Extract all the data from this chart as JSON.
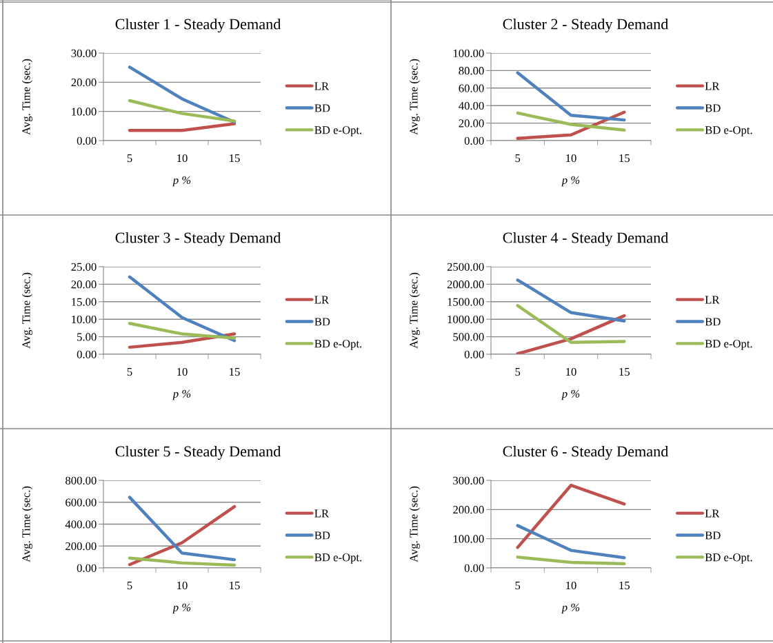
{
  "chart_data": [
    {
      "type": "line",
      "title": "Cluster 1 - Steady Demand",
      "xlabel": "p %",
      "ylabel": "Avg. Time (sec.)",
      "categories": [
        "5",
        "10",
        "15"
      ],
      "ylim": [
        0,
        30
      ],
      "yticks": [
        {
          "value": 0,
          "label": "0.00"
        },
        {
          "value": 10,
          "label": "10.00"
        },
        {
          "value": 20,
          "label": "20.00"
        },
        {
          "value": 30,
          "label": "30.00"
        }
      ],
      "grid": "y",
      "legend": "right",
      "marker": "none",
      "series": [
        {
          "name": "LR",
          "color": "#c0504d",
          "values": [
            3.5,
            3.5,
            5.8
          ]
        },
        {
          "name": "BD",
          "color": "#4f81bd",
          "values": [
            25.2,
            14.3,
            6.3
          ]
        },
        {
          "name": "BD e-Opt.",
          "color": "#9bbb59",
          "values": [
            13.7,
            9.3,
            6.7
          ]
        }
      ]
    },
    {
      "type": "line",
      "title": "Cluster 2 - Steady Demand",
      "xlabel": "p %",
      "ylabel": "Avg. Time (sec.)",
      "categories": [
        "5",
        "10",
        "15"
      ],
      "ylim": [
        0,
        100
      ],
      "yticks": [
        {
          "value": 0,
          "label": "0.00"
        },
        {
          "value": 20,
          "label": "20.00"
        },
        {
          "value": 40,
          "label": "40.00"
        },
        {
          "value": 60,
          "label": "60.00"
        },
        {
          "value": 80,
          "label": "80.00"
        },
        {
          "value": 100,
          "label": "100.00"
        }
      ],
      "grid": "y",
      "legend": "right",
      "marker": "none",
      "series": [
        {
          "name": "LR",
          "color": "#c0504d",
          "values": [
            2.5,
            6.5,
            32.5
          ]
        },
        {
          "name": "BD",
          "color": "#4f81bd",
          "values": [
            77.5,
            29,
            23.5
          ]
        },
        {
          "name": "BD e-Opt.",
          "color": "#9bbb59",
          "values": [
            31.5,
            18.5,
            12
          ]
        }
      ]
    },
    {
      "type": "line",
      "title": "Cluster 3 - Steady Demand",
      "xlabel": "p %",
      "ylabel": "Avg. Time (sec.)",
      "categories": [
        "5",
        "10",
        "15"
      ],
      "ylim": [
        0,
        25
      ],
      "yticks": [
        {
          "value": 0,
          "label": "0.00"
        },
        {
          "value": 5,
          "label": "5.00"
        },
        {
          "value": 10,
          "label": "10.00"
        },
        {
          "value": 15,
          "label": "15.00"
        },
        {
          "value": 20,
          "label": "20.00"
        },
        {
          "value": 25,
          "label": "25.00"
        }
      ],
      "grid": "y",
      "legend": "right",
      "marker": "none",
      "series": [
        {
          "name": "LR",
          "color": "#c0504d",
          "values": [
            2,
            3.4,
            5.8
          ]
        },
        {
          "name": "BD",
          "color": "#4f81bd",
          "values": [
            22.1,
            10.5,
            3.9
          ]
        },
        {
          "name": "BD e-Opt.",
          "color": "#9bbb59",
          "values": [
            8.8,
            5.8,
            4.6
          ]
        }
      ]
    },
    {
      "type": "line",
      "title": "Cluster 4 - Steady Demand",
      "xlabel": "p %",
      "ylabel": "Avg. Time (sec.)",
      "categories": [
        "5",
        "10",
        "15"
      ],
      "ylim": [
        0,
        2500
      ],
      "yticks": [
        {
          "value": 0,
          "label": "0.00"
        },
        {
          "value": 500,
          "label": "500.00"
        },
        {
          "value": 1000,
          "label": "1000.00"
        },
        {
          "value": 1500,
          "label": "1500.00"
        },
        {
          "value": 2000,
          "label": "2000.00"
        },
        {
          "value": 2500,
          "label": "2500.00"
        }
      ],
      "grid": "y",
      "legend": "right",
      "marker": "none",
      "series": [
        {
          "name": "LR",
          "color": "#c0504d",
          "values": [
            15,
            440,
            1100
          ]
        },
        {
          "name": "BD",
          "color": "#4f81bd",
          "values": [
            2120,
            1190,
            950
          ]
        },
        {
          "name": "BD e-Opt.",
          "color": "#9bbb59",
          "values": [
            1390,
            340,
            365
          ]
        }
      ]
    },
    {
      "type": "line",
      "title": "Cluster 5 - Steady Demand",
      "xlabel": "p %",
      "ylabel": "Avg. Time (sec.)",
      "categories": [
        "5",
        "10",
        "15"
      ],
      "ylim": [
        0,
        800
      ],
      "yticks": [
        {
          "value": 0,
          "label": "0.00"
        },
        {
          "value": 200,
          "label": "200.00"
        },
        {
          "value": 400,
          "label": "400.00"
        },
        {
          "value": 600,
          "label": "600.00"
        },
        {
          "value": 800,
          "label": "800.00"
        }
      ],
      "grid": "y",
      "legend": "right",
      "marker": "none",
      "series": [
        {
          "name": "LR",
          "color": "#c0504d",
          "values": [
            30,
            230,
            560
          ]
        },
        {
          "name": "BD",
          "color": "#4f81bd",
          "values": [
            645,
            135,
            75
          ]
        },
        {
          "name": "BD e-Opt.",
          "color": "#9bbb59",
          "values": [
            90,
            45,
            25
          ]
        }
      ]
    },
    {
      "type": "line",
      "title": "Cluster 6 - Steady Demand",
      "xlabel": "p %",
      "ylabel": "Avg. Time (sec.)",
      "categories": [
        "5",
        "10",
        "15"
      ],
      "ylim": [
        0,
        300
      ],
      "yticks": [
        {
          "value": 0,
          "label": "0.00"
        },
        {
          "value": 100,
          "label": "100.00"
        },
        {
          "value": 200,
          "label": "200.00"
        },
        {
          "value": 300,
          "label": "300.00"
        }
      ],
      "grid": "y",
      "legend": "right",
      "marker": "none",
      "series": [
        {
          "name": "LR",
          "color": "#c0504d",
          "values": [
            70,
            283,
            219
          ]
        },
        {
          "name": "BD",
          "color": "#4f81bd",
          "values": [
            145,
            60,
            35
          ]
        },
        {
          "name": "BD e-Opt.",
          "color": "#9bbb59",
          "values": [
            37,
            19,
            14
          ]
        }
      ]
    }
  ]
}
